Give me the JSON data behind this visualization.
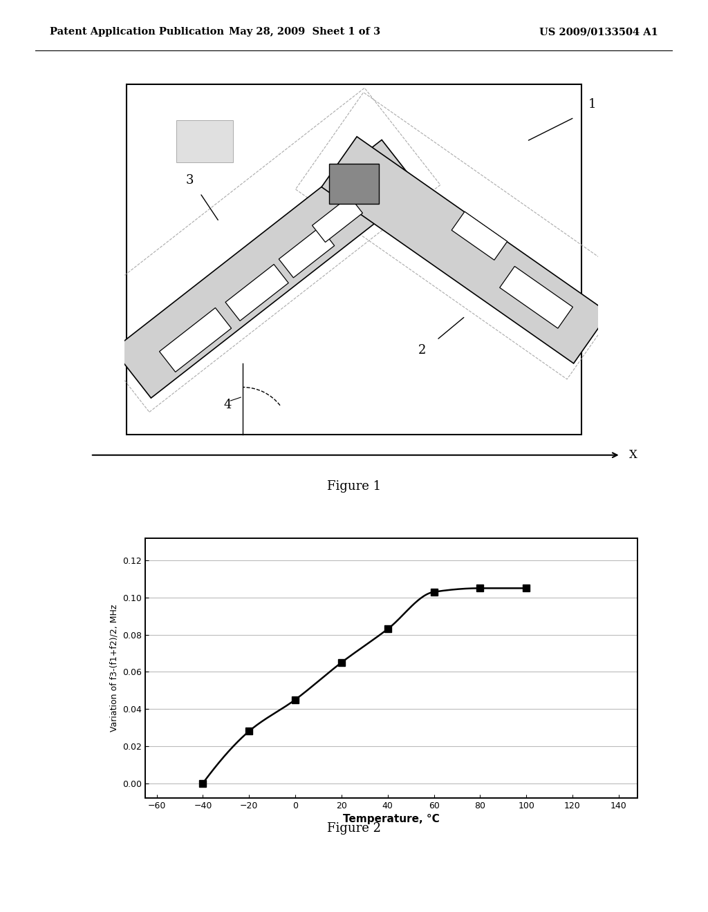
{
  "header_left": "Patent Application Publication",
  "header_mid": "May 28, 2009  Sheet 1 of 3",
  "header_right": "US 2009/0133504 A1",
  "fig1_caption": "Figure 1",
  "fig2_caption": "Figure 2",
  "graph_xlabel": "Temperature, °C",
  "graph_ylabel": "Variation of f3-(f1+f2)/2, MHz",
  "graph_xticks": [
    -60,
    -40,
    -20,
    0,
    20,
    40,
    60,
    80,
    100,
    120,
    140
  ],
  "graph_yticks": [
    0,
    0.02,
    0.04,
    0.06,
    0.08,
    0.1,
    0.12
  ],
  "graph_xlim": [
    -65,
    148
  ],
  "graph_ylim": [
    -0.008,
    0.132
  ],
  "data_x": [
    -40,
    -20,
    0,
    20,
    40,
    60,
    80,
    100
  ],
  "data_y": [
    0.0,
    0.028,
    0.045,
    0.065,
    0.083,
    0.103,
    0.105,
    0.105
  ],
  "bg_color": "#ffffff",
  "line_color": "#000000",
  "marker_color": "#000000",
  "grid_color": "#bbbbbb"
}
